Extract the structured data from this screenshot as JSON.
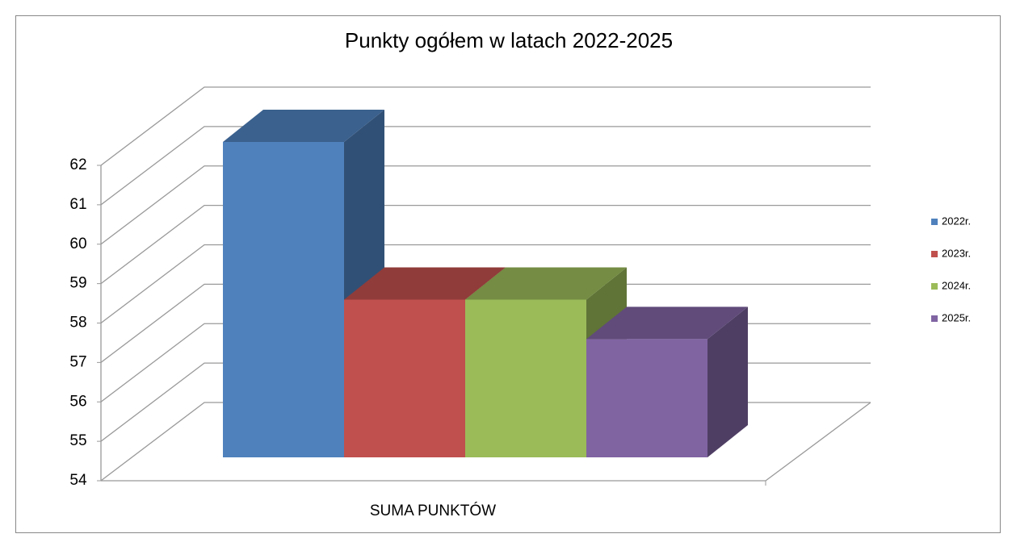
{
  "chart_data": {
    "type": "bar3d",
    "title": "Punkty ogółem w latach 2022-2025",
    "categories": [
      "SUMA PUNKTÓW"
    ],
    "series": [
      {
        "name": "2022r.",
        "color": "#4f81bd",
        "values": [
          62
        ]
      },
      {
        "name": "2023r.",
        "color": "#c0504d",
        "values": [
          58
        ]
      },
      {
        "name": "2024r.",
        "color": "#9bbb59",
        "values": [
          58
        ]
      },
      {
        "name": "2025r.",
        "color": "#8064a2",
        "values": [
          57
        ]
      }
    ],
    "ylim": [
      54,
      62
    ],
    "yticks": [
      54,
      55,
      56,
      57,
      58,
      59,
      60,
      61,
      62
    ],
    "grid": true,
    "legend": "right"
  }
}
